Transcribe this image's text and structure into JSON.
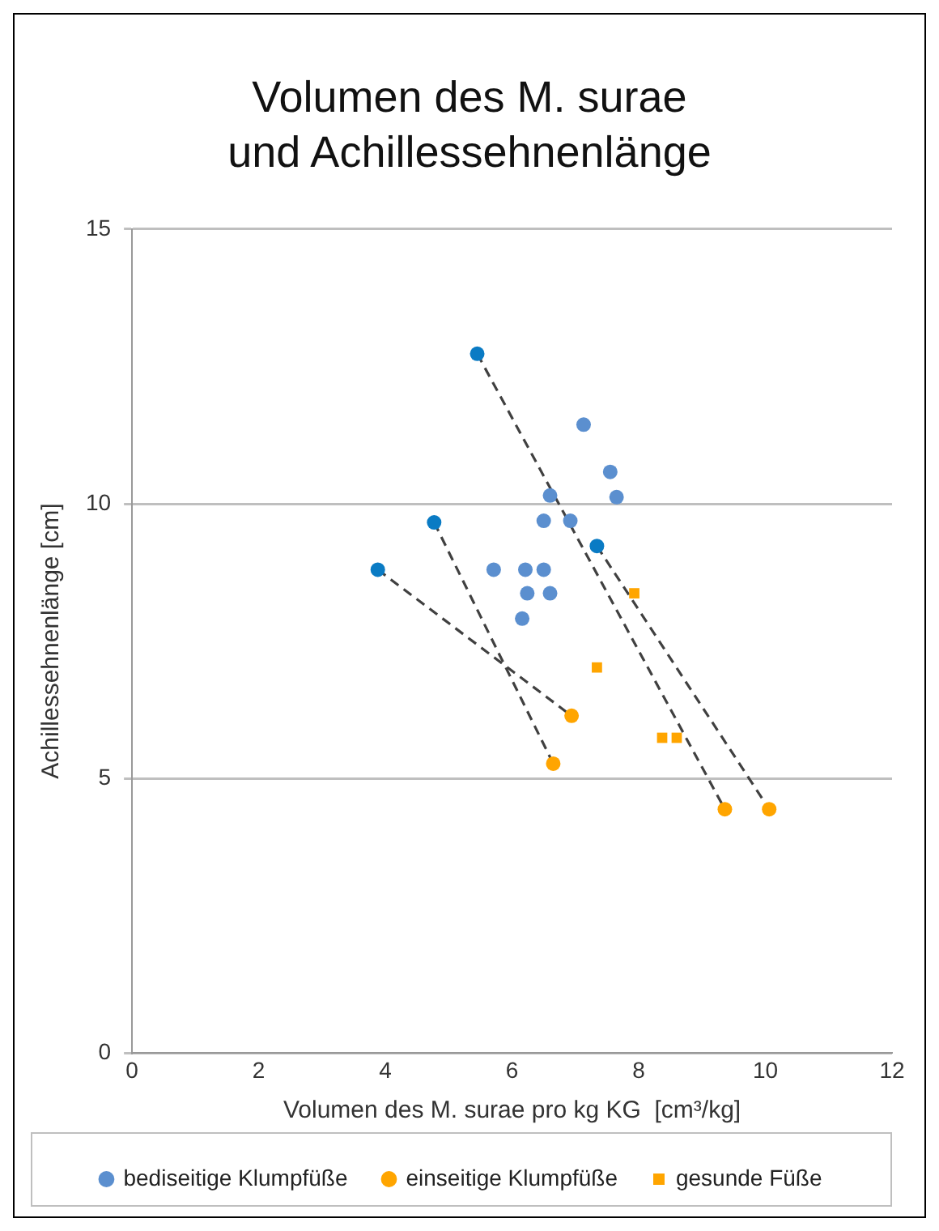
{
  "chart_data": {
    "type": "scatter",
    "title": "Volumen des M. surae und Achillessehnenlänge",
    "xlabel": "Volumen des M. surae pro kg KG  [cm³/kg]",
    "ylabel": "Achillessehnenlänge [cm]",
    "xlim": [
      0,
      12
    ],
    "xticks": [
      0,
      2,
      4,
      6,
      8,
      10,
      12
    ],
    "ylim": [
      0,
      15
    ],
    "yticks": [
      0,
      5,
      10,
      15
    ],
    "grid": "y",
    "legend": "bottom",
    "series": [
      {
        "type": "line",
        "color": "#404040",
        "line_style": "dashed",
        "marker": "none",
        "x": [
          3.88,
          6.94
        ],
        "values": [
          8.8,
          6.14
        ]
      },
      {
        "type": "line",
        "color": "#404040",
        "line_style": "dashed",
        "marker": "none",
        "x": [
          4.77,
          6.65
        ],
        "values": [
          9.66,
          5.27
        ]
      },
      {
        "type": "line",
        "color": "#404040",
        "line_style": "dashed",
        "marker": "none",
        "x": [
          5.45,
          9.36
        ],
        "values": [
          12.73,
          4.44
        ]
      },
      {
        "type": "line",
        "color": "#404040",
        "line_style": "dashed",
        "marker": "none",
        "x": [
          7.34,
          10.06
        ],
        "values": [
          9.23,
          4.44
        ]
      },
      {
        "name": "bediseitige Klumpfüße",
        "color": "#5b8fcf",
        "marker": "circle",
        "x": [
          7.13,
          7.55,
          7.65,
          6.6,
          6.5,
          6.92,
          5.71,
          6.21,
          6.5,
          6.24,
          6.6,
          6.16
        ],
        "values": [
          11.44,
          10.58,
          10.12,
          10.15,
          9.69,
          9.69,
          8.8,
          8.8,
          8.8,
          8.37,
          8.37,
          7.91
        ]
      },
      {
        "color": "#0a7bc4",
        "marker": "circle",
        "x": [
          3.88,
          4.77,
          5.45,
          7.34
        ],
        "values": [
          8.8,
          9.66,
          12.73,
          9.23
        ]
      },
      {
        "name": "einseitige Klumpfüße",
        "color": "#ffa500",
        "marker": "circle",
        "x": [
          6.94,
          6.65,
          9.36,
          10.06
        ],
        "values": [
          6.14,
          5.27,
          4.44,
          4.44
        ]
      },
      {
        "name": "gesunde Füße",
        "color": "#ffa500",
        "marker": "square",
        "x": [
          7.93,
          7.34,
          8.37,
          8.6
        ],
        "values": [
          8.37,
          7.02,
          5.74,
          5.74
        ]
      }
    ]
  }
}
